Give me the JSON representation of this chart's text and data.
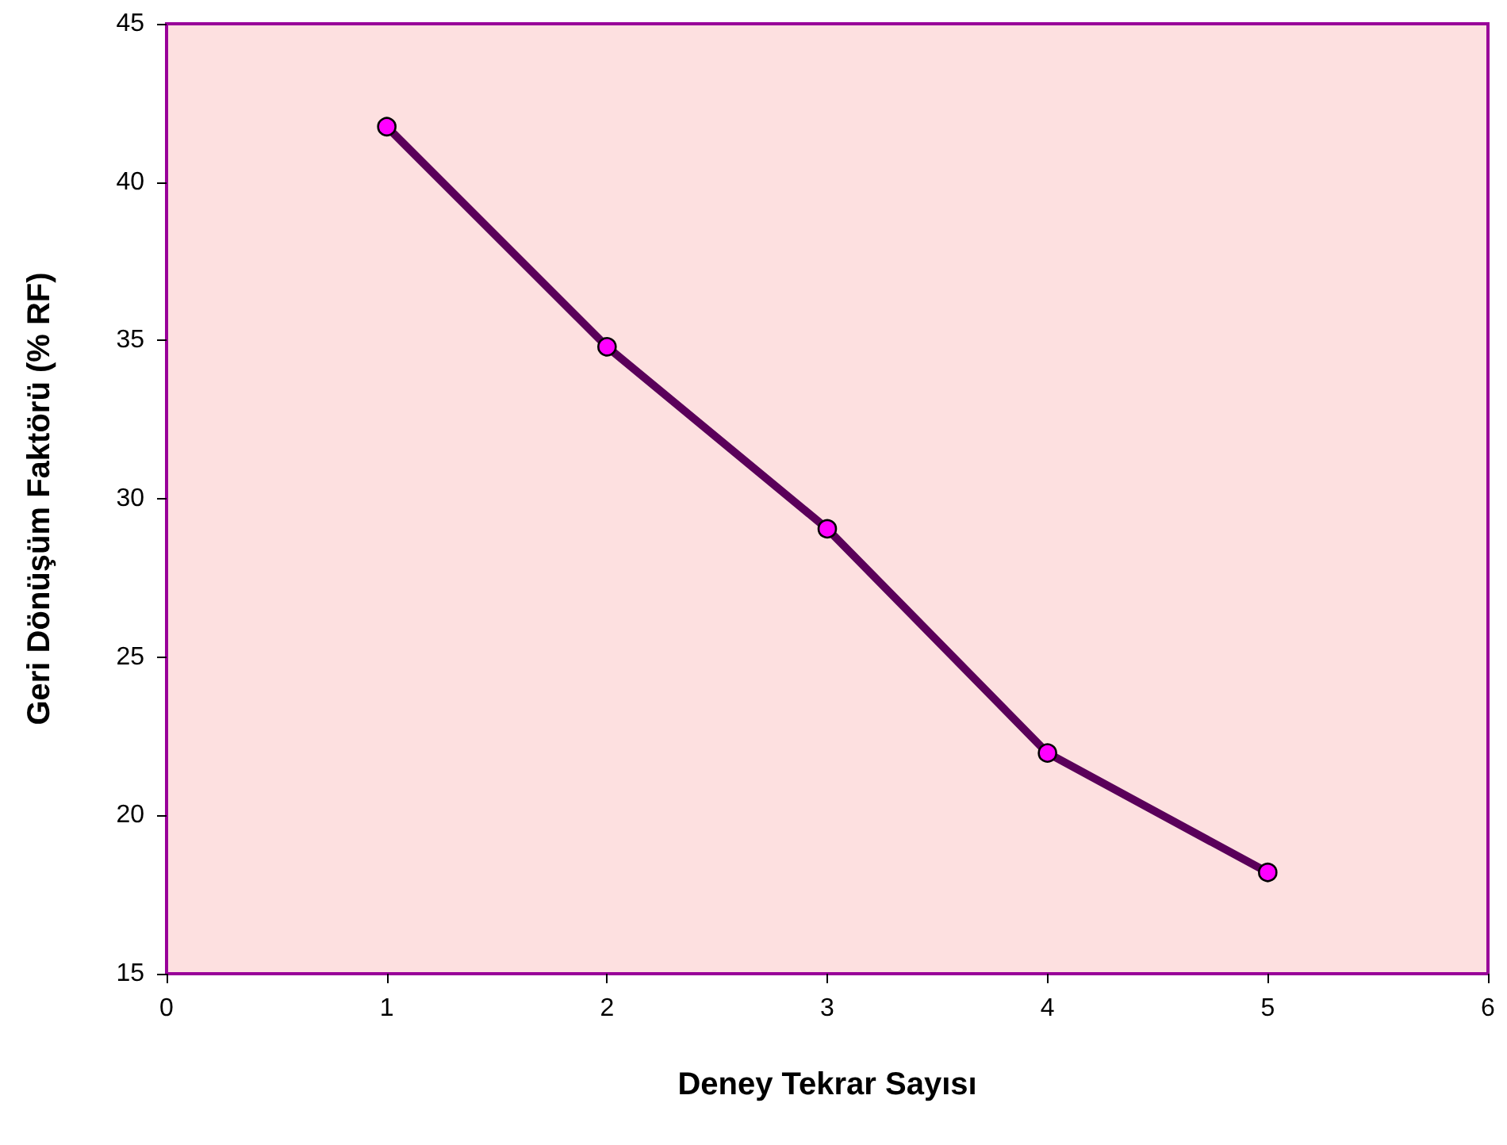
{
  "chart_data": {
    "type": "line",
    "xlabel": "Deney Tekrar Sayısı",
    "ylabel": "Geri Dönüşüm Faktörü (% RF)",
    "x": [
      1,
      2,
      3,
      4,
      5
    ],
    "series": [
      {
        "color": "#5a005a",
        "values": [
          41.75,
          34.8,
          29.05,
          21.97,
          18.2
        ]
      }
    ],
    "xlim": [
      0,
      6
    ],
    "xticks": [
      0,
      1,
      2,
      3,
      4,
      5,
      6
    ],
    "ylim": [
      15,
      45
    ],
    "yticks": [
      15,
      20,
      25,
      30,
      35,
      40,
      45
    ],
    "grid": false,
    "marker": "circle",
    "line_style": "solid"
  }
}
